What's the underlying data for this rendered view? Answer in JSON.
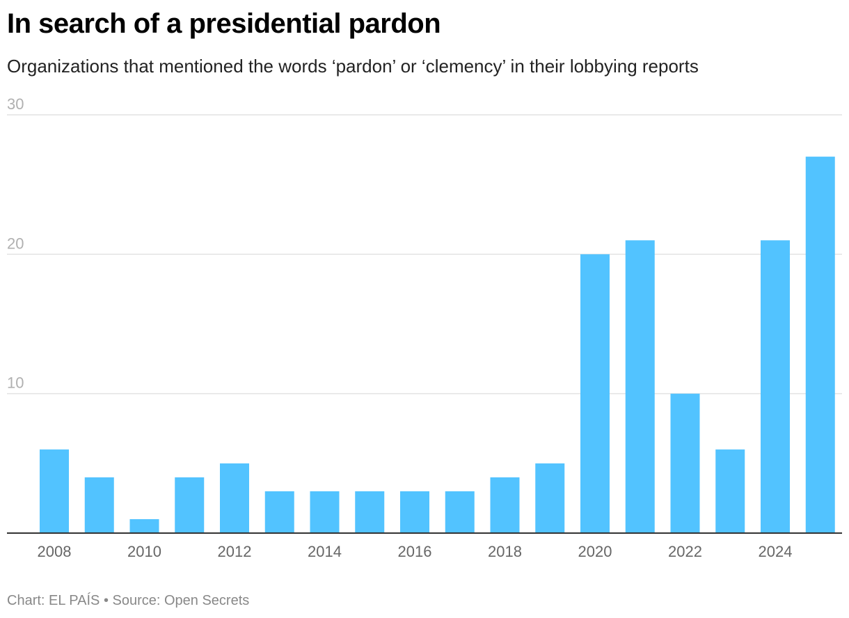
{
  "title": "In search of a presidential pardon",
  "subtitle": "Organizations that mentioned the words ‘pardon’ or ‘clemency’ in their lobbying reports",
  "footer": "Chart: EL PAÍS • Source: Open Secrets",
  "colors": {
    "bar": "#52c3ff",
    "grid": "#e2e2e2",
    "axis": "#333333"
  },
  "chart_data": {
    "type": "bar",
    "categories": [
      "2008",
      "2009",
      "2010",
      "2011",
      "2012",
      "2013",
      "2014",
      "2015",
      "2016",
      "2017",
      "2018",
      "2019",
      "2020",
      "2021",
      "2022",
      "2023",
      "2024",
      "2025"
    ],
    "values": [
      6,
      4,
      1,
      4,
      5,
      3,
      3,
      3,
      3,
      3,
      4,
      5,
      20,
      21,
      10,
      6,
      21,
      27
    ],
    "x_tick_labels": [
      "2008",
      "2010",
      "2012",
      "2014",
      "2016",
      "2018",
      "2020",
      "2022",
      "2024"
    ],
    "y_tick_labels": [
      "10",
      "20",
      "30"
    ],
    "ylim": [
      0,
      30
    ],
    "grid": true,
    "legend": "none"
  }
}
